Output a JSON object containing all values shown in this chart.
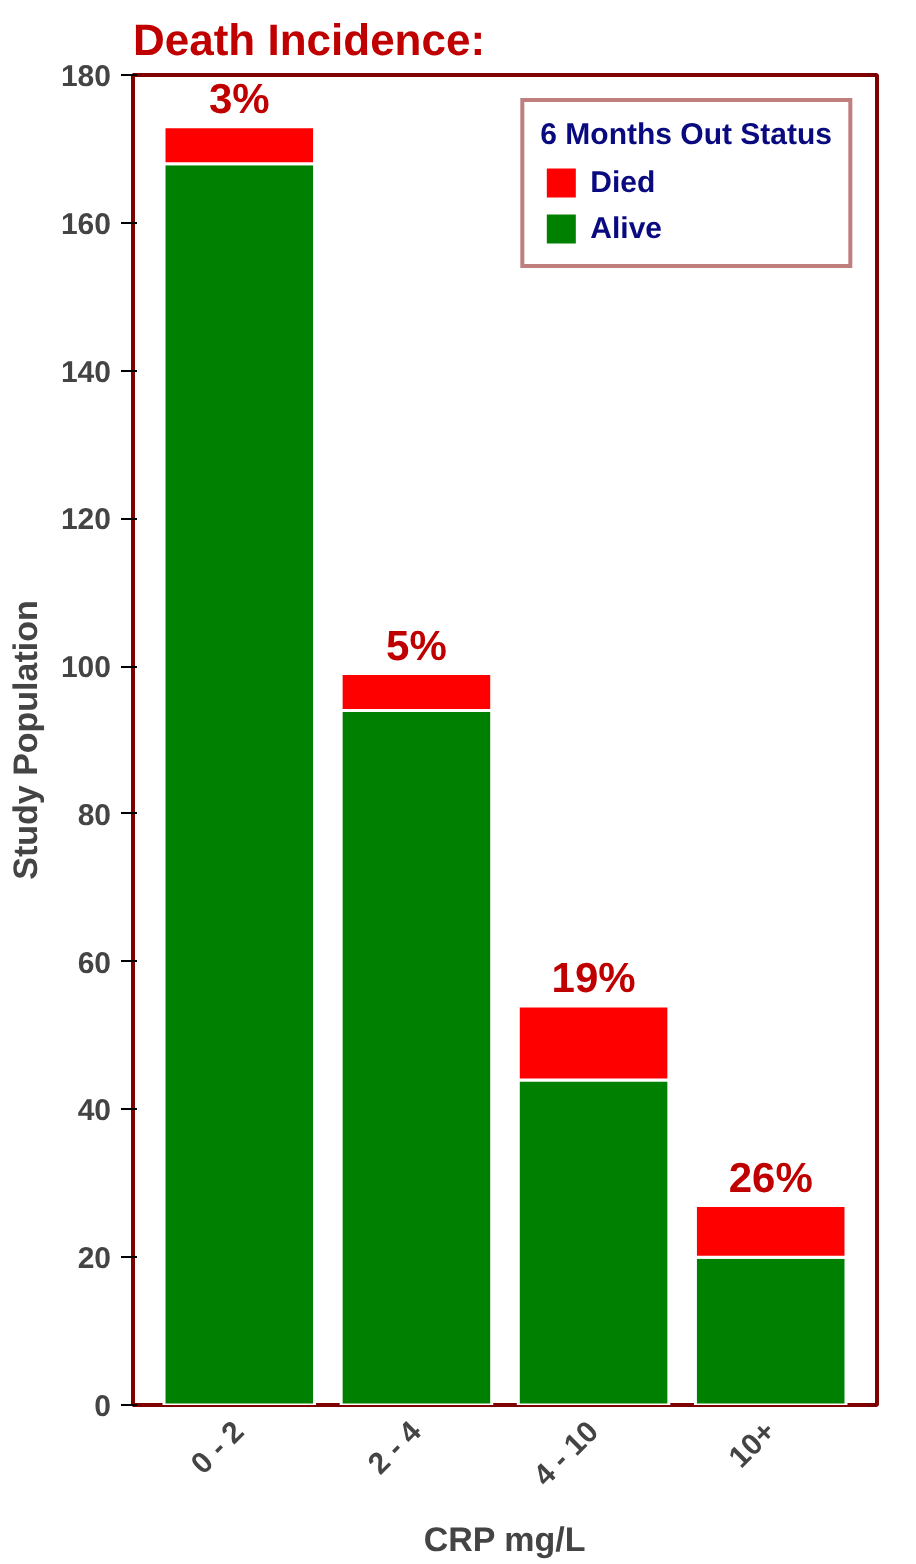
{
  "chart_data": {
    "type": "bar",
    "title": "Death Incidence:",
    "xlabel": "CRP mg/L",
    "ylabel": "Study Population",
    "legend_title": "6 Months Out Status",
    "categories": [
      "0 - 2",
      "2 - 4",
      "4 - 10",
      "10+"
    ],
    "series": [
      {
        "name": "Alive",
        "color": "#008000",
        "values": [
          168,
          94,
          44,
          20
        ]
      },
      {
        "name": "Died",
        "color": "#ff0000",
        "values": [
          5,
          5,
          10,
          7
        ]
      }
    ],
    "annotations": [
      {
        "text": "3%",
        "x": "0 - 2",
        "y": 173
      },
      {
        "text": "5%",
        "x": "2 - 4",
        "y": 99
      },
      {
        "text": "19%",
        "x": "4 - 10",
        "y": 54
      },
      {
        "text": "26%",
        "x": "10+",
        "y": 27
      }
    ],
    "stacked": true,
    "ylim": [
      0,
      180
    ],
    "yticks": [
      0,
      20,
      40,
      60,
      80,
      100,
      120,
      140,
      160,
      180
    ],
    "legend": "top right"
  }
}
